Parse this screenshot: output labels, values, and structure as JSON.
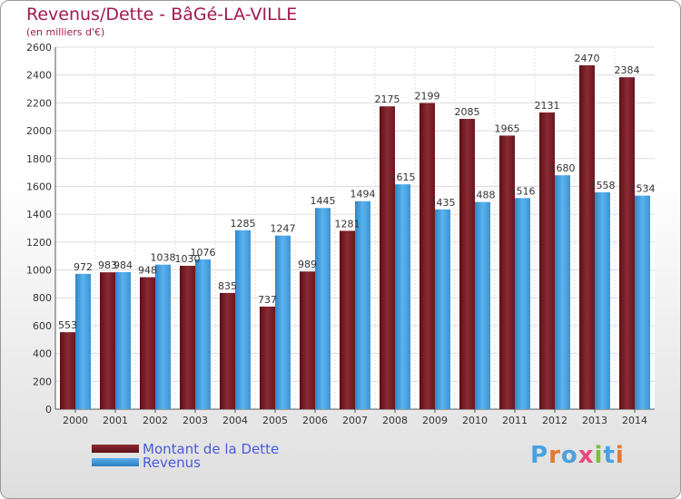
{
  "chart_data": {
    "type": "bar",
    "title": "Revenus/Dette - BâGé-LA-VILLE",
    "subtitle": "(en milliers d'€)",
    "categories": [
      "2000",
      "2001",
      "2002",
      "2003",
      "2004",
      "2005",
      "2006",
      "2007",
      "2008",
      "2009",
      "2010",
      "2011",
      "2012",
      "2013",
      "2014"
    ],
    "series": [
      {
        "name": "Montant de la Dette",
        "color": "#7a1f28",
        "values": [
          553,
          983,
          948,
          1030,
          835,
          737,
          989,
          1281,
          2175,
          2199,
          2085,
          1965,
          2131,
          2470,
          2384
        ]
      },
      {
        "name": "Revenus",
        "color": "#3a98dd",
        "values": [
          972,
          984,
          1038,
          1076,
          1285,
          1247,
          1445,
          1494,
          1615,
          1435,
          1488,
          1516,
          1680,
          1558,
          1534
        ]
      }
    ],
    "ylim": [
      0,
      2600
    ],
    "yticks": [
      0,
      200,
      400,
      600,
      800,
      1000,
      1200,
      1400,
      1600,
      1800,
      2000,
      2200,
      2400,
      2600
    ],
    "grid": true,
    "legend_position": "bottom-left"
  },
  "logo": {
    "letters": [
      "P",
      "r",
      "o",
      "x",
      "i",
      "t",
      "i"
    ],
    "colors": [
      "#4aa1e0",
      "#e8772e",
      "#4aa1e0",
      "#e84a7a",
      "#7bbf3a",
      "#4aa1e0",
      "#e8772e"
    ]
  }
}
